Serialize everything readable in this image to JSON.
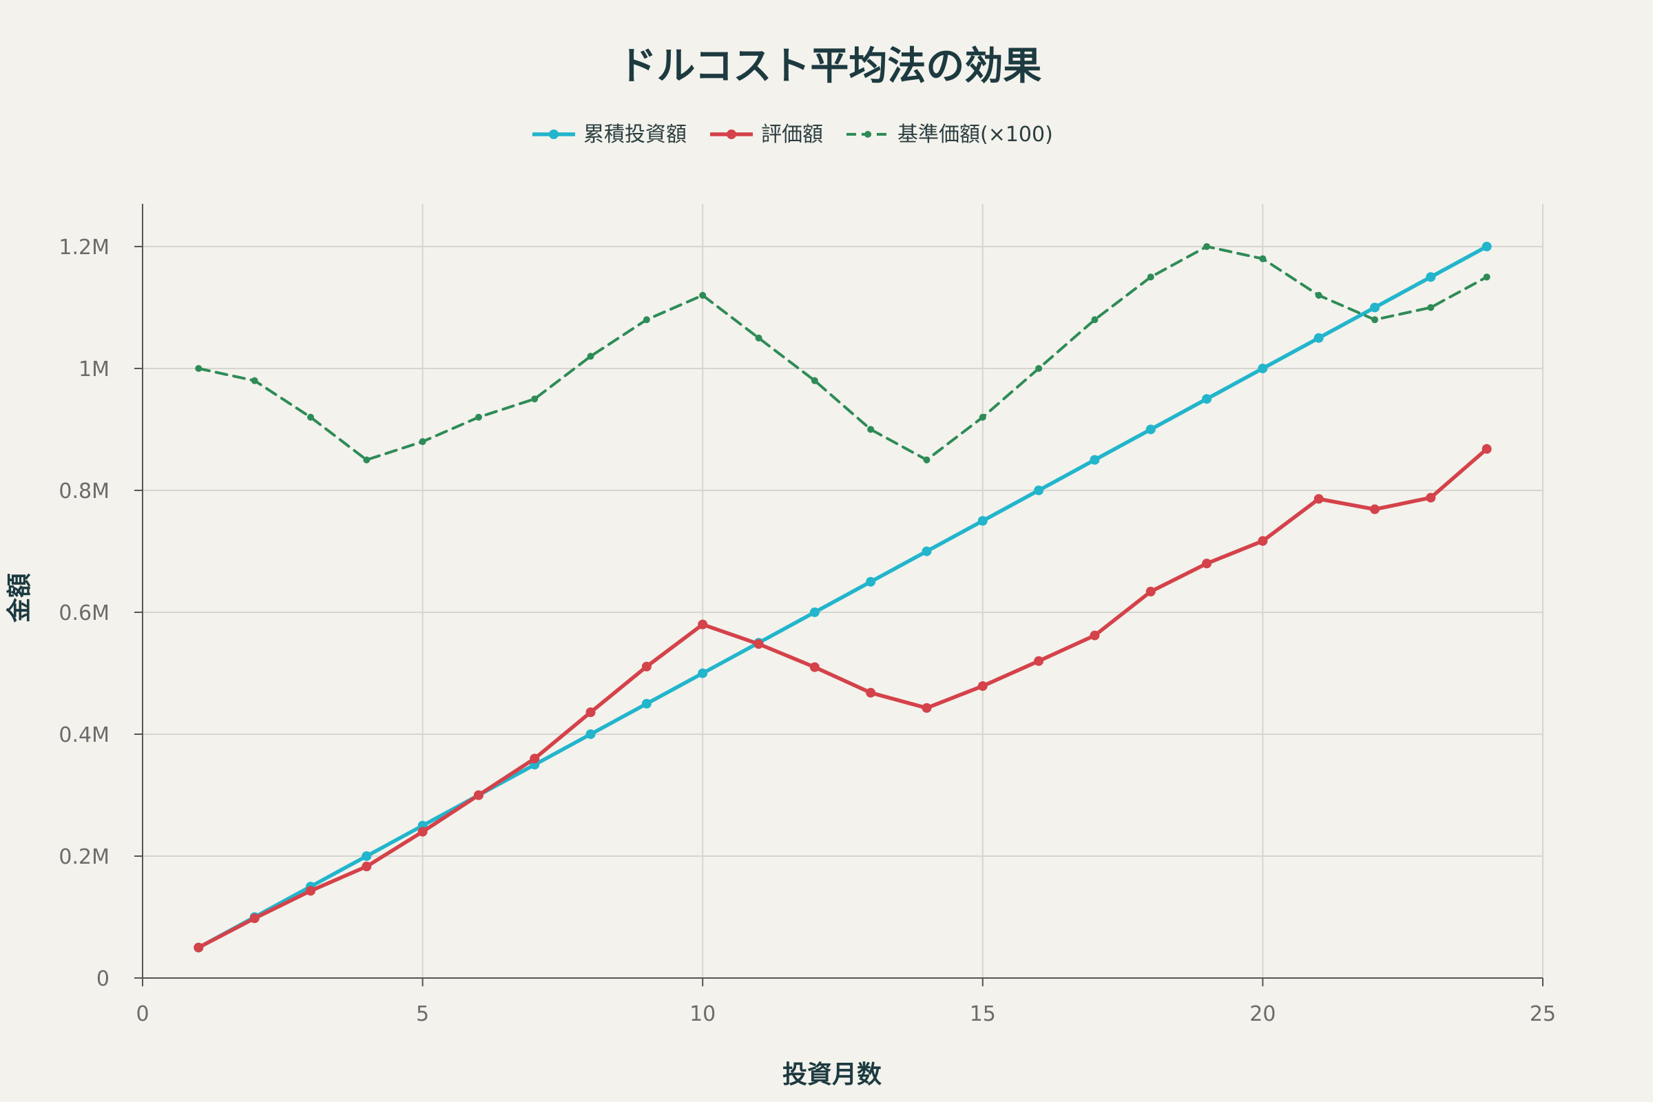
{
  "chart_data": {
    "type": "line",
    "title": "ドルコスト平均法の効果",
    "xlabel": "投資月数",
    "ylabel": "金額",
    "xlim": [
      0,
      25
    ],
    "ylim": [
      0,
      1270000
    ],
    "x_ticks": [
      0,
      5,
      10,
      15,
      20,
      25
    ],
    "x_tick_labels": [
      "0",
      "5",
      "10",
      "15",
      "20",
      "25"
    ],
    "y_ticks": [
      0,
      200000,
      400000,
      600000,
      800000,
      1000000,
      1200000
    ],
    "y_tick_labels": [
      "0",
      "0.2M",
      "0.4M",
      "0.6M",
      "0.8M",
      "1M",
      "1.2M"
    ],
    "grid": true,
    "legend_position": "top-center",
    "x": [
      1,
      2,
      3,
      4,
      5,
      6,
      7,
      8,
      9,
      10,
      11,
      12,
      13,
      14,
      15,
      16,
      17,
      18,
      19,
      20,
      21,
      22,
      23,
      24
    ],
    "series": [
      {
        "name": "累積投資額",
        "color": "#22b5cc",
        "style": "solid",
        "values": [
          50000,
          100000,
          150000,
          200000,
          250000,
          300000,
          350000,
          400000,
          450000,
          500000,
          550000,
          600000,
          650000,
          700000,
          750000,
          800000,
          850000,
          900000,
          950000,
          1000000,
          1050000,
          1100000,
          1150000,
          1200000
        ]
      },
      {
        "name": "評価額",
        "color": "#d4424a",
        "style": "solid",
        "values": [
          50000,
          98000,
          143000,
          183000,
          240000,
          300000,
          360000,
          436000,
          511000,
          580000,
          548000,
          510000,
          468000,
          443000,
          479000,
          520000,
          562000,
          634000,
          680000,
          717000,
          786000,
          769000,
          788000,
          868000
        ]
      },
      {
        "name": "基準価額(×100)",
        "color": "#2e8b57",
        "style": "dashed",
        "values": [
          1000000,
          980000,
          920000,
          850000,
          880000,
          920000,
          950000,
          1020000,
          1080000,
          1120000,
          1050000,
          980000,
          900000,
          850000,
          920000,
          1000000,
          1080000,
          1150000,
          1200000,
          1180000,
          1120000,
          1080000,
          1100000,
          1150000
        ]
      }
    ]
  }
}
